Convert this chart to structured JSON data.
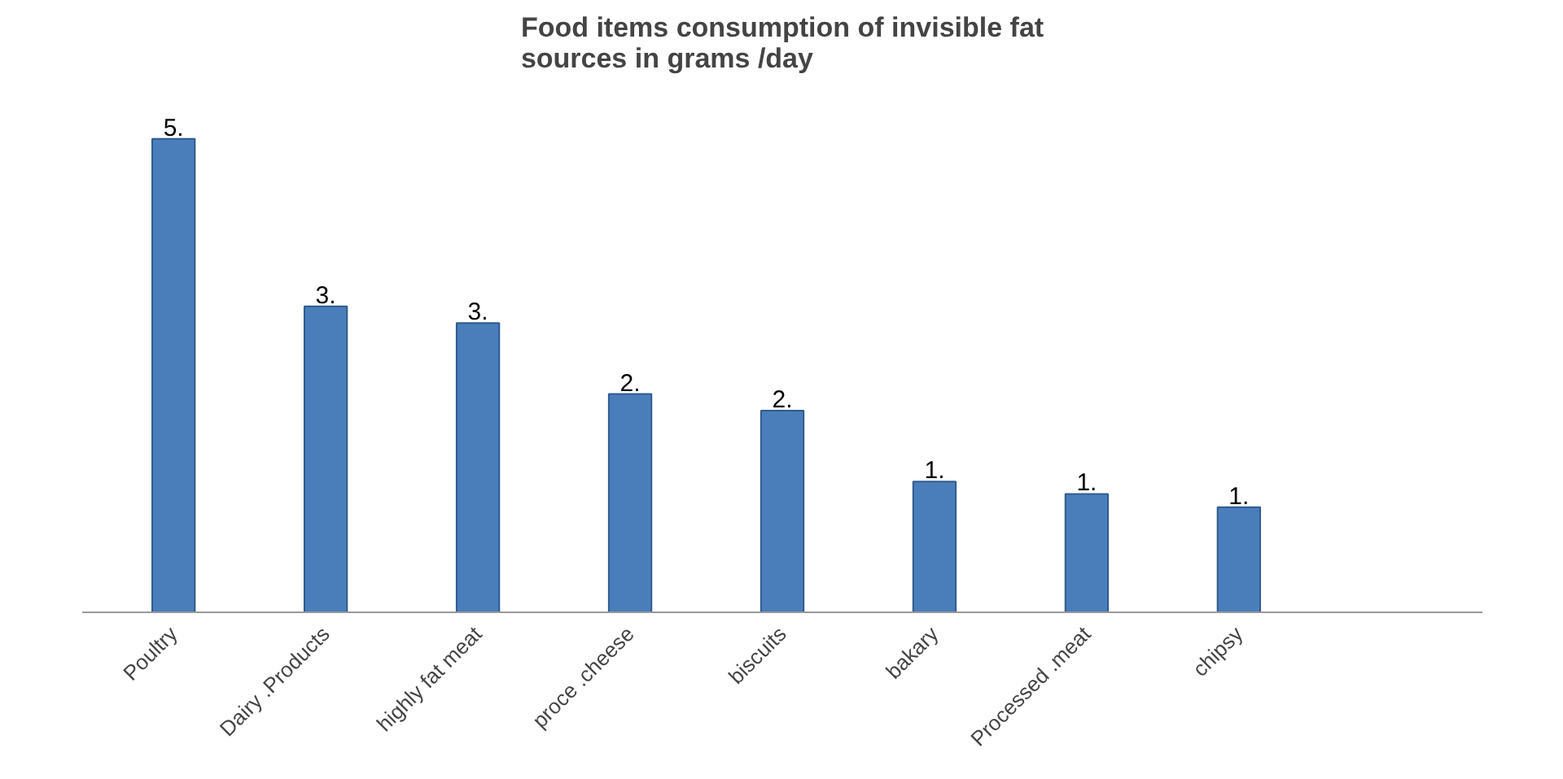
{
  "chart_data": {
    "type": "bar",
    "title": "Food items consumption of invisible fat\nsources   in grams /day",
    "categories": [
      "Poultry",
      "Dairy .Products",
      "highly fat meat",
      "proce .cheese",
      "biscuits",
      "bakary",
      "Processed .meat",
      "chipsy",
      null
    ],
    "values": [
      5.4,
      3.49,
      3.3,
      2.49,
      2.3,
      1.49,
      1.35,
      1.2,
      null
    ],
    "value_labels": [
      "5.",
      "3.",
      "3.",
      "2.",
      "2.",
      "1.",
      "1.",
      "1.",
      null
    ],
    "color": "#4a7ebb",
    "grid": false
  }
}
